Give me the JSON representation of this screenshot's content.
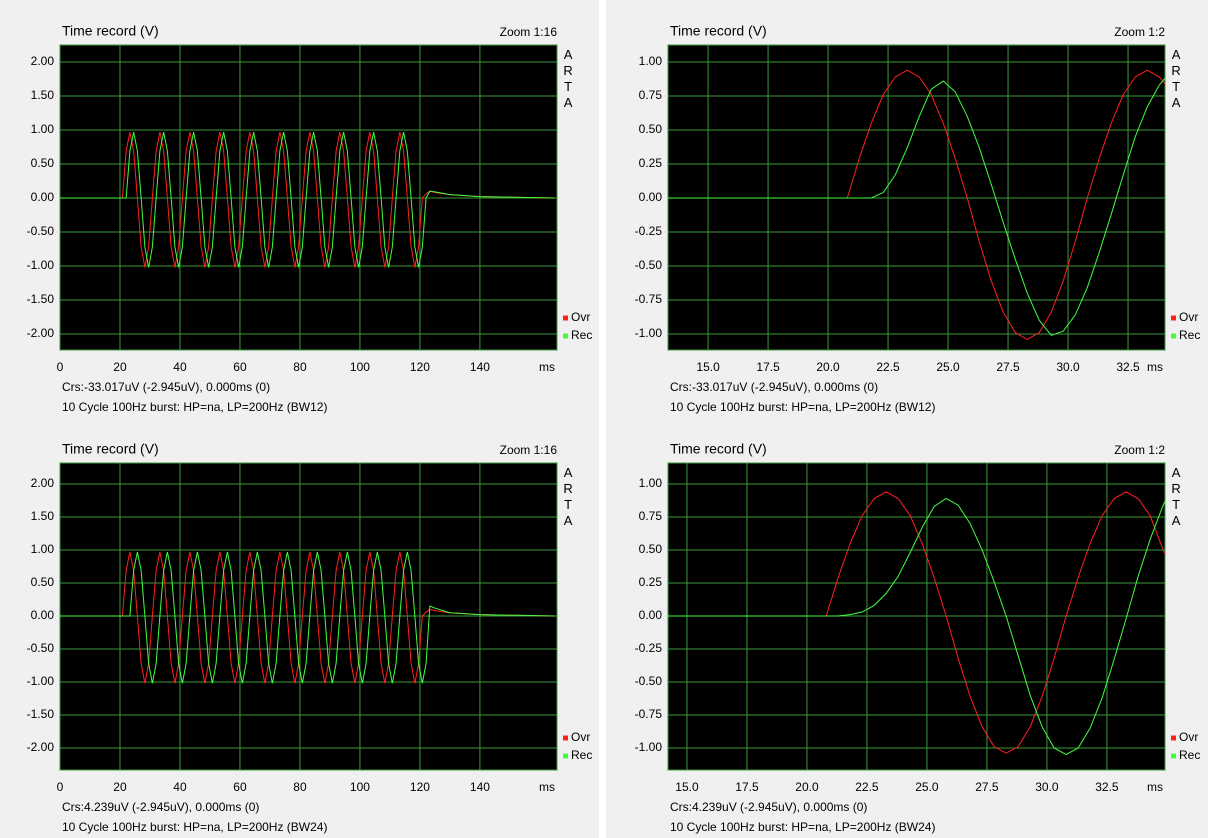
{
  "chart_data": [
    {
      "type": "line",
      "title": "Time record (V)",
      "zoom": "Zoom 1:16",
      "logo": "ARTA",
      "xlabel": "ms",
      "cursor": "Crs:-33.017uV (-2.945uV), 0.000ms (0)",
      "caption": "10 Cycle 100Hz burst: HP=na, LP=200Hz (BW12)",
      "xlim": [
        0,
        165.7
      ],
      "ylim": [
        -2.235,
        2.25
      ],
      "grid": true,
      "xticks": [
        0,
        20,
        40,
        60,
        80,
        100,
        120,
        140
      ],
      "yticks": [
        {
          "value": 2,
          "label": "2.00"
        },
        {
          "value": 1.5,
          "label": "1.50"
        },
        {
          "value": 1,
          "label": "1.00"
        },
        {
          "value": 0.5,
          "label": "0.50"
        },
        {
          "value": 0,
          "label": "0.00"
        },
        {
          "value": -0.5,
          "label": "-0.50"
        },
        {
          "value": -1,
          "label": "-1.00"
        },
        {
          "value": -1.5,
          "label": "-1.50"
        },
        {
          "value": -2,
          "label": "-2.00"
        }
      ],
      "x": [
        0,
        20.8,
        22.05,
        23.3,
        24.55,
        25.8,
        27.05,
        28.3,
        29.55,
        30.8,
        32.05,
        33.3,
        34.55,
        35.8,
        37.05,
        38.3,
        39.55,
        40.8,
        42.05,
        43.3,
        44.55,
        45.8,
        47.05,
        48.3,
        49.55,
        50.8,
        52.05,
        53.3,
        54.55,
        55.8,
        57.05,
        58.3,
        59.55,
        60.8,
        62.05,
        63.3,
        64.55,
        65.8,
        67.05,
        68.3,
        69.55,
        70.8,
        72.05,
        73.3,
        74.55,
        75.8,
        77.05,
        78.3,
        79.55,
        80.8,
        82.05,
        83.3,
        84.55,
        85.8,
        87.05,
        88.3,
        89.55,
        90.8,
        92.05,
        93.3,
        94.55,
        95.8,
        97.05,
        98.3,
        99.55,
        100.8,
        102.05,
        103.3,
        104.55,
        105.8,
        107.05,
        108.3,
        109.55,
        110.8,
        112.05,
        113.3,
        114.55,
        115.8,
        117.05,
        118.3,
        119.55,
        120.8,
        122.05,
        123.3,
        125,
        130,
        140,
        165
      ],
      "series": [
        {
          "name": "Ovr",
          "color": "#ff2020",
          "values": [
            0,
            0,
            0.69,
            0.97,
            0.69,
            0,
            -0.72,
            -1.02,
            -0.72,
            0,
            0.69,
            0.97,
            0.69,
            0,
            -0.72,
            -1.02,
            -0.72,
            0,
            0.69,
            0.97,
            0.69,
            0,
            -0.72,
            -1.02,
            -0.72,
            0,
            0.69,
            0.97,
            0.69,
            0,
            -0.72,
            -1.02,
            -0.72,
            0,
            0.69,
            0.97,
            0.69,
            0,
            -0.72,
            -1.02,
            -0.72,
            0,
            0.69,
            0.97,
            0.69,
            0,
            -0.72,
            -1.02,
            -0.72,
            0,
            0.69,
            0.97,
            0.69,
            0,
            -0.72,
            -1.02,
            -0.72,
            0,
            0.69,
            0.97,
            0.69,
            0,
            -0.72,
            -1.02,
            -0.72,
            0,
            0.69,
            0.97,
            0.69,
            0,
            -0.72,
            -1.02,
            -0.72,
            0,
            0.69,
            0.97,
            0.69,
            0,
            -0.72,
            -1.02,
            -0.72,
            0,
            0.06,
            0.1,
            0.08,
            0.05,
            0.02,
            0
          ]
        },
        {
          "name": "Rec",
          "color": "#40ff40",
          "values": [
            0,
            0,
            0,
            0.69,
            0.97,
            0.69,
            0,
            -0.72,
            -1.02,
            -0.72,
            0,
            0.69,
            0.97,
            0.69,
            0,
            -0.72,
            -1.02,
            -0.72,
            0,
            0.69,
            0.97,
            0.69,
            0,
            -0.72,
            -1.02,
            -0.72,
            0,
            0.69,
            0.97,
            0.69,
            0,
            -0.72,
            -1.02,
            -0.72,
            0,
            0.69,
            0.97,
            0.69,
            0,
            -0.72,
            -1.02,
            -0.72,
            0,
            0.69,
            0.97,
            0.69,
            0,
            -0.72,
            -1.02,
            -0.72,
            0,
            0.69,
            0.97,
            0.69,
            0,
            -0.72,
            -1.02,
            -0.72,
            0,
            0.69,
            0.97,
            0.69,
            0,
            -0.72,
            -1.02,
            -0.72,
            0,
            0.69,
            0.97,
            0.69,
            0,
            -0.72,
            -1.02,
            -0.72,
            0,
            0.69,
            0.97,
            0.69,
            0,
            -0.72,
            -1.02,
            -0.72,
            0,
            0.1,
            0.09,
            0.05,
            0.02,
            0
          ]
        }
      ]
    },
    {
      "type": "line",
      "title": "Time record (V)",
      "zoom": "Zoom 1:2",
      "logo": "ARTA",
      "xlabel": "ms",
      "cursor": "Crs:-33.017uV (-2.945uV), 0.000ms (0)",
      "caption": "10 Cycle 100Hz burst: HP=na, LP=200Hz (BW12)",
      "xlim": [
        13.33,
        34.04
      ],
      "ylim": [
        -1.118,
        1.125
      ],
      "grid": true,
      "xticks": [
        {
          "value": 15,
          "label": "15.0"
        },
        17.5,
        {
          "value": 20,
          "label": "20.0"
        },
        22.5,
        {
          "value": 25,
          "label": "25.0"
        },
        27.5,
        {
          "value": 30,
          "label": "30.0"
        },
        32.5
      ],
      "yticks": [
        {
          "value": 1,
          "label": "1.00"
        },
        0.75,
        {
          "value": 0.5,
          "label": "0.50"
        },
        0.25,
        {
          "value": 0,
          "label": "0.00"
        },
        -0.25,
        {
          "value": -0.5,
          "label": "-0.50"
        },
        -0.75,
        {
          "value": -1,
          "label": "-1.00"
        }
      ],
      "x": [
        13.33,
        20.8,
        21.3,
        21.8,
        22.3,
        22.8,
        23.3,
        23.8,
        24.3,
        24.8,
        25.3,
        25.8,
        26.3,
        26.8,
        27.3,
        27.8,
        28.3,
        28.8,
        29.3,
        29.8,
        30.3,
        30.8,
        31.3,
        31.8,
        32.3,
        32.8,
        33.3,
        33.8,
        34.04
      ],
      "series": [
        {
          "name": "Ovr",
          "color": "#ff2020",
          "values": [
            0,
            0,
            0.29,
            0.55,
            0.76,
            0.89,
            0.94,
            0.89,
            0.76,
            0.55,
            0.29,
            0,
            -0.32,
            -0.61,
            -0.84,
            -0.99,
            -1.04,
            -0.99,
            -0.84,
            -0.61,
            -0.32,
            0,
            0.29,
            0.55,
            0.76,
            0.89,
            0.94,
            0.89,
            0.84
          ]
        },
        {
          "name": "Rec",
          "color": "#40ff40",
          "values": [
            0,
            0,
            0,
            0,
            0.04,
            0.17,
            0.37,
            0.6,
            0.8,
            0.86,
            0.78,
            0.6,
            0.37,
            0.1,
            -0.18,
            -0.45,
            -0.7,
            -0.9,
            -1.01,
            -0.98,
            -0.86,
            -0.66,
            -0.4,
            -0.12,
            0.17,
            0.45,
            0.67,
            0.83,
            0.88
          ]
        }
      ]
    },
    {
      "type": "line",
      "title": "Time record (V)",
      "zoom": "Zoom 1:16",
      "logo": "ARTA",
      "xlabel": "ms",
      "cursor": "Crs:4.239uV (-2.945uV), 0.000ms (0)",
      "caption": "10 Cycle 100Hz burst: HP=na, LP=200Hz (BW24)",
      "xlim": [
        0,
        165.7
      ],
      "ylim": [
        -2.333,
        2.318
      ],
      "grid": true,
      "xticks": [
        0,
        20,
        40,
        60,
        80,
        100,
        120,
        140
      ],
      "yticks": [
        {
          "value": 2,
          "label": "2.00"
        },
        {
          "value": 1.5,
          "label": "1.50"
        },
        {
          "value": 1,
          "label": "1.00"
        },
        {
          "value": 0.5,
          "label": "0.50"
        },
        {
          "value": 0,
          "label": "0.00"
        },
        {
          "value": -0.5,
          "label": "-0.50"
        },
        {
          "value": -1,
          "label": "-1.00"
        },
        {
          "value": -1.5,
          "label": "-1.50"
        },
        {
          "value": -2,
          "label": "-2.00"
        }
      ],
      "x": [
        0,
        20.8,
        22.05,
        23.3,
        24.55,
        25.8,
        27.05,
        28.3,
        29.55,
        30.8,
        32.05,
        33.3,
        34.55,
        35.8,
        37.05,
        38.3,
        39.55,
        40.8,
        42.05,
        43.3,
        44.55,
        45.8,
        47.05,
        48.3,
        49.55,
        50.8,
        52.05,
        53.3,
        54.55,
        55.8,
        57.05,
        58.3,
        59.55,
        60.8,
        62.05,
        63.3,
        64.55,
        65.8,
        67.05,
        68.3,
        69.55,
        70.8,
        72.05,
        73.3,
        74.55,
        75.8,
        77.05,
        78.3,
        79.55,
        80.8,
        82.05,
        83.3,
        84.55,
        85.8,
        87.05,
        88.3,
        89.55,
        90.8,
        92.05,
        93.3,
        94.55,
        95.8,
        97.05,
        98.3,
        99.55,
        100.8,
        102.05,
        103.3,
        104.55,
        105.8,
        107.05,
        108.3,
        109.55,
        110.8,
        112.05,
        113.3,
        114.55,
        115.8,
        117.05,
        118.3,
        119.55,
        120.8,
        122.05,
        123.3,
        125,
        130,
        140,
        165
      ],
      "series": [
        {
          "name": "Ovr",
          "color": "#ff2020",
          "values": [
            0,
            0,
            0.69,
            0.97,
            0.69,
            0,
            -0.72,
            -1.02,
            -0.72,
            0,
            0.69,
            0.97,
            0.69,
            0,
            -0.72,
            -1.02,
            -0.72,
            0,
            0.69,
            0.97,
            0.69,
            0,
            -0.72,
            -1.02,
            -0.72,
            0,
            0.69,
            0.97,
            0.69,
            0,
            -0.72,
            -1.02,
            -0.72,
            0,
            0.69,
            0.97,
            0.69,
            0,
            -0.72,
            -1.02,
            -0.72,
            0,
            0.69,
            0.97,
            0.69,
            0,
            -0.72,
            -1.02,
            -0.72,
            0,
            0.69,
            0.97,
            0.69,
            0,
            -0.72,
            -1.02,
            -0.72,
            0,
            0.69,
            0.97,
            0.69,
            0,
            -0.72,
            -1.02,
            -0.72,
            0,
            0.69,
            0.97,
            0.69,
            0,
            -0.72,
            -1.02,
            -0.72,
            0,
            0.69,
            0.97,
            0.69,
            0,
            -0.72,
            -1.02,
            -0.72,
            0,
            0.06,
            0.1,
            0.08,
            0.05,
            0.02,
            0
          ]
        },
        {
          "name": "Rec",
          "color": "#40ff40",
          "values": [
            0,
            0,
            0,
            0,
            0.69,
            0.97,
            0.69,
            0,
            -0.72,
            -1.02,
            -0.72,
            0,
            0.69,
            0.97,
            0.69,
            0,
            -0.72,
            -1.02,
            -0.72,
            0,
            0.69,
            0.97,
            0.69,
            0,
            -0.72,
            -1.02,
            -0.72,
            0,
            0.69,
            0.97,
            0.69,
            0,
            -0.72,
            -1.02,
            -0.72,
            0,
            0.69,
            0.97,
            0.69,
            0,
            -0.72,
            -1.02,
            -0.72,
            0,
            0.69,
            0.97,
            0.69,
            0,
            -0.72,
            -1.02,
            -0.72,
            0,
            0.69,
            0.97,
            0.69,
            0,
            -0.72,
            -1.02,
            -0.72,
            0,
            0.69,
            0.97,
            0.69,
            0,
            -0.72,
            -1.02,
            -0.72,
            0,
            0.69,
            0.97,
            0.69,
            0,
            -0.72,
            -1.02,
            -0.72,
            0,
            0.69,
            0.97,
            0.69,
            0,
            -0.72,
            -1.02,
            -0.72,
            0.15,
            0.12,
            0.05,
            0.02,
            0
          ]
        }
      ]
    },
    {
      "type": "line",
      "title": "Time record (V)",
      "zoom": "Zoom 1:2",
      "logo": "ARTA",
      "xlabel": "ms",
      "cursor": "Crs:4.239uV (-2.945uV), 0.000ms (0)",
      "caption": "10 Cycle 100Hz burst: HP=na, LP=200Hz (BW24)",
      "xlim": [
        14.21,
        34.92
      ],
      "ylim": [
        -1.167,
        1.159
      ],
      "grid": true,
      "xticks": [
        {
          "value": 15,
          "label": "15.0"
        },
        17.5,
        {
          "value": 20,
          "label": "20.0"
        },
        22.5,
        {
          "value": 25,
          "label": "25.0"
        },
        27.5,
        {
          "value": 30,
          "label": "30.0"
        },
        32.5
      ],
      "yticks": [
        {
          "value": 1,
          "label": "1.00"
        },
        0.75,
        {
          "value": 0.5,
          "label": "0.50"
        },
        0.25,
        {
          "value": 0,
          "label": "0.00"
        },
        -0.25,
        {
          "value": -0.5,
          "label": "-0.50"
        },
        -0.75,
        {
          "value": -1,
          "label": "-1.00"
        }
      ],
      "x": [
        14.21,
        20.8,
        21.3,
        21.8,
        22.3,
        22.8,
        23.3,
        23.8,
        24.3,
        24.8,
        25.3,
        25.8,
        26.3,
        26.8,
        27.3,
        27.8,
        28.3,
        28.8,
        29.3,
        29.8,
        30.3,
        30.8,
        31.3,
        31.8,
        32.3,
        32.8,
        33.3,
        33.8,
        34.3,
        34.8,
        34.92
      ],
      "series": [
        {
          "name": "Ovr",
          "color": "#ff2020",
          "values": [
            0,
            0,
            0.29,
            0.55,
            0.76,
            0.89,
            0.94,
            0.89,
            0.76,
            0.55,
            0.29,
            0,
            -0.32,
            -0.61,
            -0.84,
            -0.99,
            -1.04,
            -0.99,
            -0.84,
            -0.61,
            -0.32,
            0,
            0.29,
            0.55,
            0.76,
            0.89,
            0.94,
            0.89,
            0.76,
            0.52,
            0.47
          ]
        },
        {
          "name": "Rec",
          "color": "#40ff40",
          "values": [
            0,
            0,
            0,
            0.01,
            0.03,
            0.08,
            0.17,
            0.3,
            0.48,
            0.67,
            0.83,
            0.89,
            0.84,
            0.7,
            0.5,
            0.26,
            0,
            -0.3,
            -0.6,
            -0.84,
            -1.0,
            -1.05,
            -1.0,
            -0.85,
            -0.62,
            -0.33,
            -0.02,
            0.3,
            0.58,
            0.82,
            0.87
          ]
        }
      ]
    }
  ]
}
